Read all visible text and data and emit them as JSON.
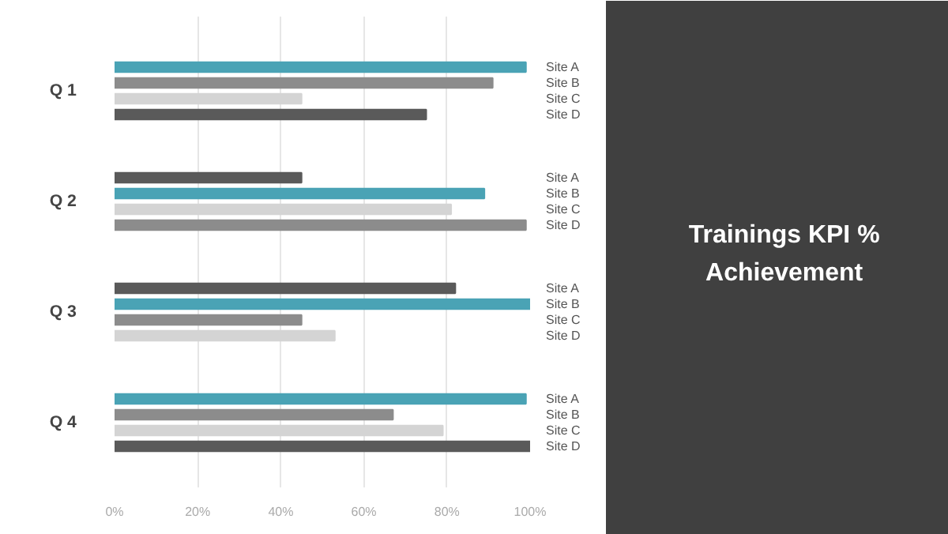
{
  "chart_data": {
    "type": "bar",
    "orientation": "horizontal",
    "title": "Trainings KPI % Achievement",
    "categories": [
      "Q 1",
      "Q 2",
      "Q 3",
      "Q 4"
    ],
    "series": [
      {
        "name": "Site A",
        "values": [
          99,
          45,
          82,
          99
        ],
        "colors": [
          "#4aa3b5",
          "#5a5a5a",
          "#5a5a5a",
          "#4aa3b5"
        ]
      },
      {
        "name": "Site B",
        "values": [
          91,
          89,
          100,
          67
        ],
        "colors": [
          "#8c8c8c",
          "#4aa3b5",
          "#4aa3b5",
          "#8c8c8c"
        ]
      },
      {
        "name": "Site C",
        "values": [
          45,
          81,
          45,
          79
        ],
        "colors": [
          "#d4d4d4",
          "#d4d4d4",
          "#8c8c8c",
          "#d4d4d4"
        ]
      },
      {
        "name": "Site D",
        "values": [
          75,
          99,
          53,
          100
        ],
        "colors": [
          "#5a5a5a",
          "#8c8c8c",
          "#d4d4d4",
          "#5a5a5a"
        ]
      }
    ],
    "xlim": [
      0,
      100
    ],
    "xticks": [
      {
        "value": 0,
        "label": "0%"
      },
      {
        "value": 20,
        "label": "20%"
      },
      {
        "value": 40,
        "label": "40%"
      },
      {
        "value": 60,
        "label": "60%"
      },
      {
        "value": 80,
        "label": "80%"
      },
      {
        "value": 100,
        "label": "100%"
      }
    ],
    "grid": "x"
  }
}
